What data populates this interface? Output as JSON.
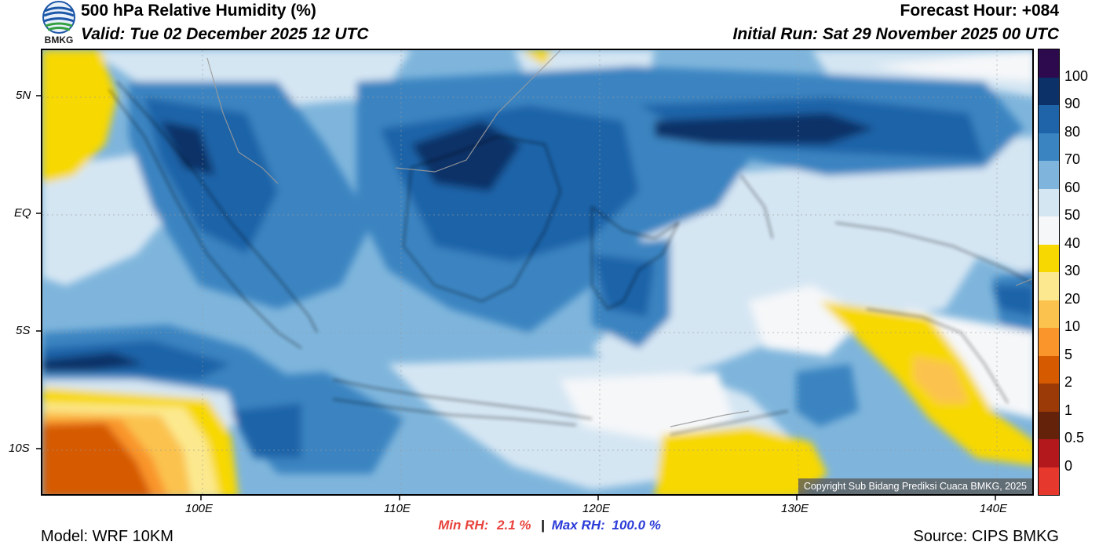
{
  "header": {
    "title": "500 hPa Relative Humidity (%)",
    "valid": "Valid: Tue 02 December 2025 12 UTC",
    "forecast_hour": "Forecast Hour: +084",
    "initial_run": "Initial Run: Sat 29 November 2025 00 UTC",
    "logo_text": "BMKG"
  },
  "map": {
    "lat_labels": [
      "5N",
      "EQ",
      "5S",
      "10S"
    ],
    "lon_labels": [
      "100E",
      "110E",
      "120E",
      "130E",
      "140E"
    ],
    "copyright": "Copyright Sub Bidang Prediksi Cuaca BMKG, 2025"
  },
  "colorbar": {
    "labels": [
      "100",
      "90",
      "80",
      "70",
      "60",
      "50",
      "40",
      "30",
      "20",
      "10",
      "5",
      "2",
      "1",
      "0.5",
      "0"
    ],
    "colors": [
      "#2d0a4e",
      "#0c3068",
      "#1f63a8",
      "#3a84c1",
      "#7fb5dc",
      "#d5e6f3",
      "#f5f7f9",
      "#f7d800",
      "#fce98f",
      "#fbc24e",
      "#f9952b",
      "#d65a00",
      "#9b3a06",
      "#64220a",
      "#b3191c",
      "#e6382d"
    ]
  },
  "stats": {
    "min_label": "Min RH:",
    "min_value": "2.1 %",
    "separator": "|",
    "max_label": "Max RH:",
    "max_value": "100.0 %"
  },
  "footer": {
    "model": "Model: WRF 10KM",
    "source": "Source: CIPS BMKG"
  }
}
